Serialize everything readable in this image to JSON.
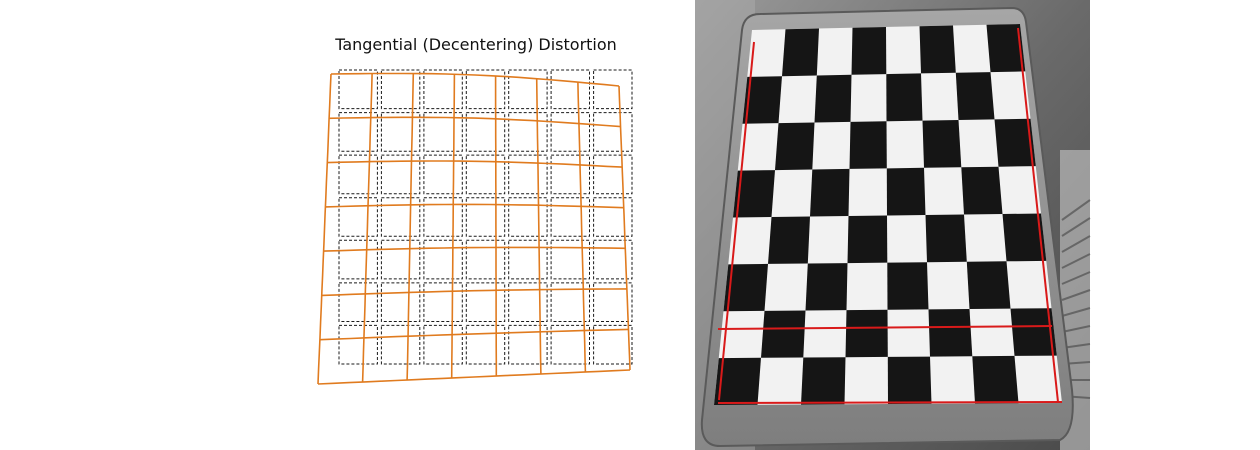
{
  "diagram": {
    "title": "Tangential (Decentering) Distortion",
    "colors": {
      "distorted_grid": "#e07b1f",
      "reference_grid": "#1a1a1a",
      "fit_lines": "#d91a1a",
      "checker_dark": "#151515",
      "checker_light": "#f2f2f2",
      "board_background": "#8a8a8a",
      "photo_background": "#585858"
    }
  },
  "photo": {
    "subject": "checkerboard calibration target",
    "checkerboard_squares": 8
  }
}
